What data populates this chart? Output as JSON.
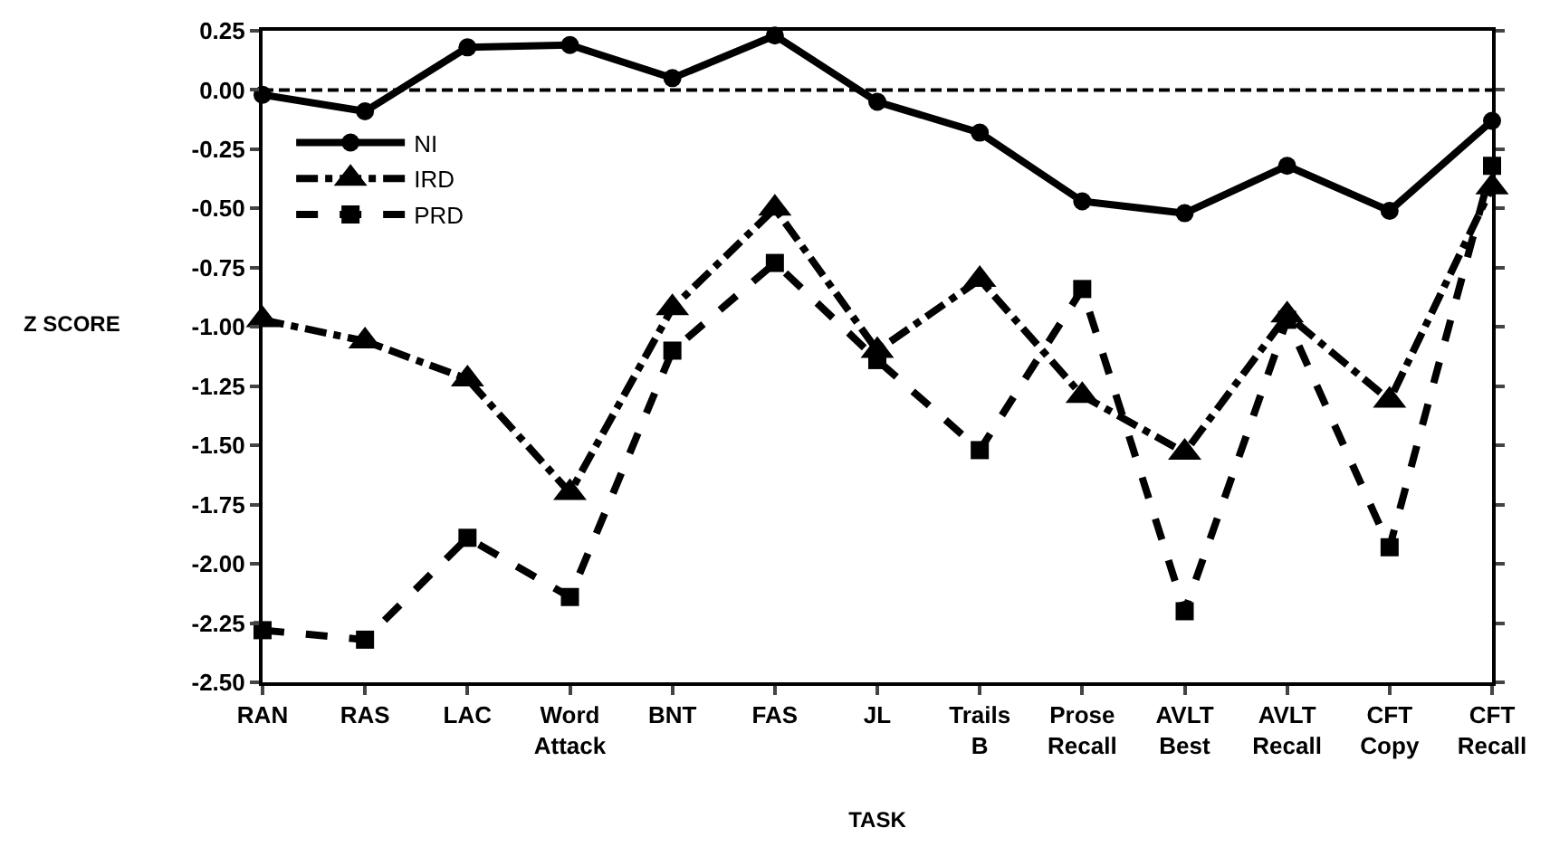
{
  "chart_data": {
    "type": "line",
    "xlabel": "TASK",
    "ylabel": "Z SCORE",
    "categories": [
      "RAN",
      "RAS",
      "LAC",
      "Word\nAttack",
      "BNT",
      "FAS",
      "JL",
      "Trails\nB",
      "Prose\nRecall",
      "AVLT\nBest",
      "AVLT\nRecall",
      "CFT\nCopy",
      "CFT\nRecall"
    ],
    "series": [
      {
        "name": "NI",
        "color": "#000000",
        "marker": "circle",
        "line_style": "solid",
        "values": [
          -0.02,
          -0.09,
          0.18,
          0.19,
          0.05,
          0.23,
          -0.05,
          -0.18,
          -0.47,
          -0.52,
          -0.32,
          -0.51,
          -0.13
        ]
      },
      {
        "name": "IRD",
        "color": "#000000",
        "marker": "triangle",
        "line_style": "dashdot",
        "values": [
          -0.97,
          -1.06,
          -1.22,
          -1.7,
          -0.92,
          -0.5,
          -1.1,
          -0.8,
          -1.29,
          -1.53,
          -0.95,
          -1.31,
          -0.41
        ]
      },
      {
        "name": "PRD",
        "color": "#000000",
        "marker": "square",
        "line_style": "dashed",
        "values": [
          -2.28,
          -2.32,
          -1.89,
          -2.14,
          -1.1,
          -0.73,
          -1.14,
          -1.52,
          -0.84,
          -2.2,
          -0.97,
          -1.93,
          -0.32
        ]
      }
    ],
    "ylim": [
      -2.5,
      0.25
    ],
    "yticks": [
      {
        "value": 0.25,
        "label": "0.25"
      },
      {
        "value": 0,
        "label": "0.00"
      },
      {
        "value": -0.25,
        "label": "-0.25"
      },
      {
        "value": -0.5,
        "label": "-0.50"
      },
      {
        "value": -0.75,
        "label": "-0.75"
      },
      {
        "value": -1,
        "label": "-1.00"
      },
      {
        "value": -1.25,
        "label": "-1.25"
      },
      {
        "value": -1.5,
        "label": "-1.50"
      },
      {
        "value": -1.75,
        "label": "-1.75"
      },
      {
        "value": -2,
        "label": "-2.00"
      },
      {
        "value": -2.25,
        "label": "-2.25"
      },
      {
        "value": -2.5,
        "label": "-2.50"
      }
    ],
    "ref_lines": [
      {
        "axis": "y",
        "value": 0,
        "line_style": "dashed",
        "color": "#000000"
      }
    ],
    "legend": "top left"
  }
}
